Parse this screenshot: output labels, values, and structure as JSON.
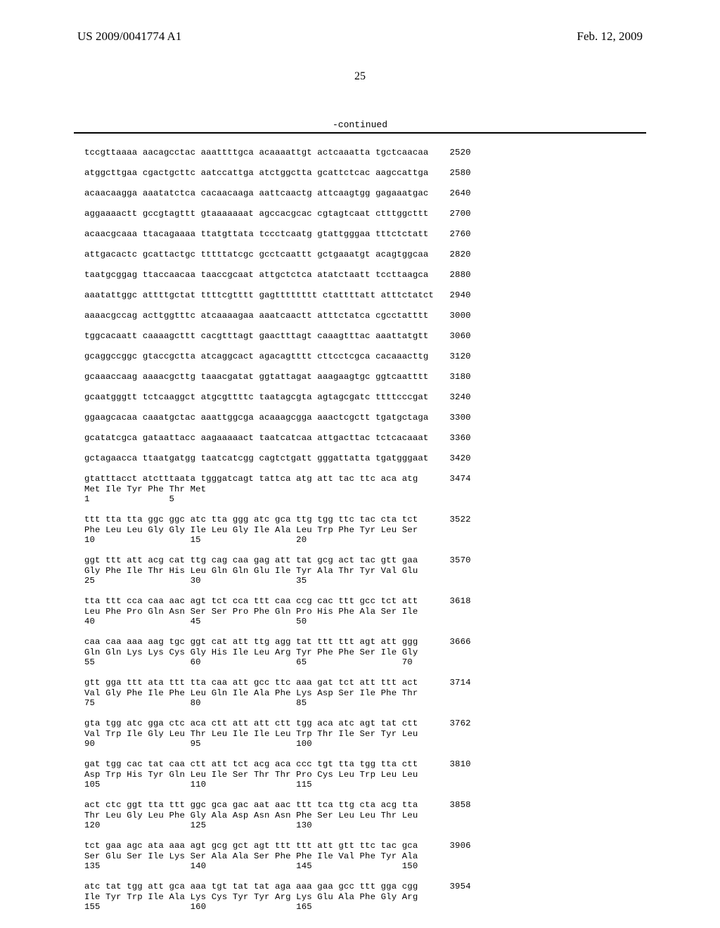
{
  "header": {
    "pub_number": "US 2009/0041774 A1",
    "pub_date": "Feb. 12, 2009"
  },
  "page_number": "25",
  "continued_label": "-continued",
  "sequence_lines": [
    "tccgttaaaa aacagcctac aaattttgca acaaaattgt actcaaatta tgctcaacaa    2520",
    "",
    "atggcttgaa cgactgcttc aatccattga atctggctta gcattctcac aagccattga    2580",
    "",
    "acaacaagga aaatatctca cacaacaaga aattcaactg attcaagtgg gagaaatgac    2640",
    "",
    "aggaaaactt gccgtagttt gtaaaaaaat agccacgcac cgtagtcaat ctttggcttt    2700",
    "",
    "acaacgcaaa ttacagaaaa ttatgttata tccctcaatg gtattgggaa tttctctatt    2760",
    "",
    "attgacactc gcattactgc tttttatcgc gcctcaattt gctgaaatgt acagtggcaa    2820",
    "",
    "taatgcggag ttaccaacaa taaccgcaat attgctctca atatctaatt tccttaagca    2880",
    "",
    "aaatattggc attttgctat ttttcgtttt gagtttttttt ctattttatt atttctatct   2940",
    "",
    "aaaacgccag acttggtttc atcaaaagaa aaatcaactt atttctatca cgcctatttt    3000",
    "",
    "tggcacaatt caaaagcttt cacgtttagt gaactttagt caaagtttac aaattatgtt    3060",
    "",
    "gcaggccggc gtaccgctta atcaggcact agacagtttt cttcctcgca cacaaacttg    3120",
    "",
    "gcaaaccaag aaaacgcttg taaacgatat ggtattagat aaagaagtgc ggtcaatttt    3180",
    "",
    "gcaatgggtt tctcaaggct atgcgttttc taatagcgta agtagcgatc ttttcccgat    3240",
    "",
    "ggaagcacaa caaatgctac aaattggcga acaaagcgga aaactcgctt tgatgctaga    3300",
    "",
    "gcatatcgca gataattacc aagaaaaact taatcatcaa attgacttac tctcacaaat    3360",
    "",
    "gctagaacca ttaatgatgg taatcatcgg cagtctgatt gggattatta tgatgggaat    3420",
    "",
    "gtatttacct atctttaata tgggatcagt tattca atg att tac ttc aca atg      3474",
    "Met Ile Tyr Phe Thr Met",
    "1               5",
    "",
    "ttt tta tta ggc ggc atc tta ggg atc gca ttg tgg ttc tac cta tct      3522",
    "Phe Leu Leu Gly Gly Ile Leu Gly Ile Ala Leu Trp Phe Tyr Leu Ser",
    "10                  15                  20",
    "",
    "ggt ttt att acg cat ttg cag caa gag att tat gcg act tac gtt gaa      3570",
    "Gly Phe Ile Thr His Leu Gln Gln Glu Ile Tyr Ala Thr Tyr Val Glu",
    "25                  30                  35",
    "",
    "tta ttt cca caa aac agt tct cca ttt caa ccg cac ttt gcc tct att      3618",
    "Leu Phe Pro Gln Asn Ser Ser Pro Phe Gln Pro His Phe Ala Ser Ile",
    "40                  45                  50",
    "",
    "caa caa aaa aag tgc ggt cat att ttg agg tat ttt ttt agt att ggg      3666",
    "Gln Gln Lys Lys Cys Gly His Ile Leu Arg Tyr Phe Phe Ser Ile Gly",
    "55                  60                  65                  70",
    "",
    "gtt gga ttt ata ttt tta caa att gcc ttc aaa gat tct att ttt act      3714",
    "Val Gly Phe Ile Phe Leu Gln Ile Ala Phe Lys Asp Ser Ile Phe Thr",
    "75                  80                  85",
    "",
    "gta tgg atc gga ctc aca ctt att att ctt tgg aca atc agt tat ctt      3762",
    "Val Trp Ile Gly Leu Thr Leu Ile Ile Leu Trp Thr Ile Ser Tyr Leu",
    "90                  95                  100",
    "",
    "gat tgg cac tat caa ctt att tct acg aca ccc tgt tta tgg tta ctt      3810",
    "Asp Trp His Tyr Gln Leu Ile Ser Thr Thr Pro Cys Leu Trp Leu Leu",
    "105                 110                 115",
    "",
    "act ctc ggt tta ttt ggc gca gac aat aac ttt tca ttg cta acg tta      3858",
    "Thr Leu Gly Leu Phe Gly Ala Asp Asn Asn Phe Ser Leu Leu Thr Leu",
    "120                 125                 130",
    "",
    "tct gaa agc ata aaa agt gcg gct agt ttt ttt att gtt ttc tac gca      3906",
    "Ser Glu Ser Ile Lys Ser Ala Ala Ser Phe Phe Ile Val Phe Tyr Ala",
    "135                 140                 145                 150",
    "",
    "atc tat tgg att gca aaa tgt tat tat aga aaa gaa gcc ttt gga cgg      3954",
    "Ile Tyr Trp Ile Ala Lys Cys Tyr Tyr Arg Lys Glu Ala Phe Gly Arg",
    "155                 160                 165"
  ]
}
